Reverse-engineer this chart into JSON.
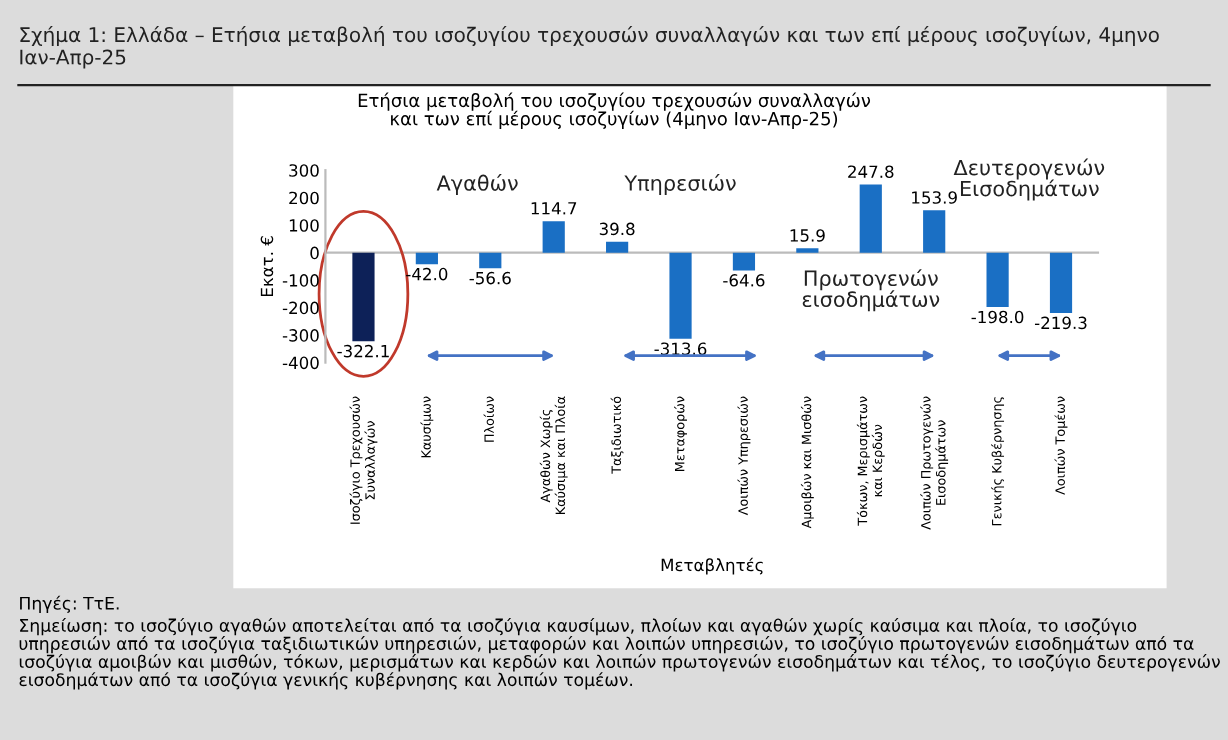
{
  "chart_data": {
    "type": "bar",
    "title": "Σχήμα 1: Ελλάδα – Ετήσια μεταβολή του ισοζυγίου τρεχουσών συναλλαγών και των επί μέρους ισοζυγίων, 4μηνο Ιαν-Απρ-25",
    "subtitle": "Ετήσια μεταβολή του ισοζυγίου τρεχουσών συναλλαγών\nκαι των επί μέρους ισοζυγίων (4μηνο Ιαν-Απρ-25)",
    "xlabel": "Μεταβλητές",
    "ylabel": "Εκατ. €",
    "categories": [
      "Ισοζύγιο Τρεχουσών Συναλλαγών",
      "Καυσίμων",
      "Πλοίων",
      "Αγαθών Χωρίς Καύσιμα και Πλοία",
      "Ταξιδιωτικό",
      "Μεταφορών",
      "Λοιπών Υπηρεσιών",
      "Αμοιβών και Μισθών",
      "Τόκων, Μερισμάτων και Κερδών",
      "Λοιπών Πρωτογενών Εισοδημάτων",
      "Γενικής Κυβέρνησης",
      "Λοιπών Τομέων"
    ],
    "values": [
      -322.1,
      -42.0,
      -56.6,
      114.7,
      39.8,
      -313.6,
      -64.6,
      15.9,
      247.8,
      153.9,
      -198.0,
      -219.3
    ],
    "colors": [
      "#0d2158",
      "#1a6fc4",
      "#1a6fc4",
      "#1a6fc4",
      "#1a6fc4",
      "#1a6fc4",
      "#1a6fc4",
      "#1a6fc4",
      "#1a6fc4",
      "#1a6fc4",
      "#1a6fc4",
      "#1a6fc4"
    ],
    "data_labels": true,
    "value_labels": [
      "-322.1",
      "-42.0",
      "-56.6",
      "114.7",
      "39.8",
      "-313.6",
      "-64.6",
      "15.9",
      "247.8",
      "153.9",
      "-198.0",
      "-219.3"
    ],
    "ylim": [
      -400,
      300
    ],
    "yticks": [
      -400,
      -300,
      -200,
      -100,
      0,
      100,
      200,
      300
    ],
    "annotations": [
      "Αγαθών",
      "Υπηρεσιών",
      "Πρωτογενών\nεισοδημάτων",
      "Δευτερογενών\nΕισοδημάτων",
      "Πηγές: ΤτΕ.",
      "Σημείωση: το ισοζύγιο αγαθών αποτελείται από τα ισοζύγια καυσίμων, πλοίων και αγαθών χωρίς καύσιμα και πλοία, το ισοζύγιο υπηρεσιών από τα ισοζύγια ταξιδιωτικών υπηρεσιών, μεταφορών και λοιπών υπηρεσιών, το ισοζύγιο πρωτογενών εισοδημάτων από τα ισοζύγια αμοιβών και μισθών, τόκων, μερισμάτων και κερδών και λοιπών πρωτογενών εισοδημάτων και τέλος, το ισοζύγιο δευτερογενών εισοδημάτων από τα ισοζύγια γενικής κυβέρνησης και λοιπών τομέων."
    ]
  }
}
